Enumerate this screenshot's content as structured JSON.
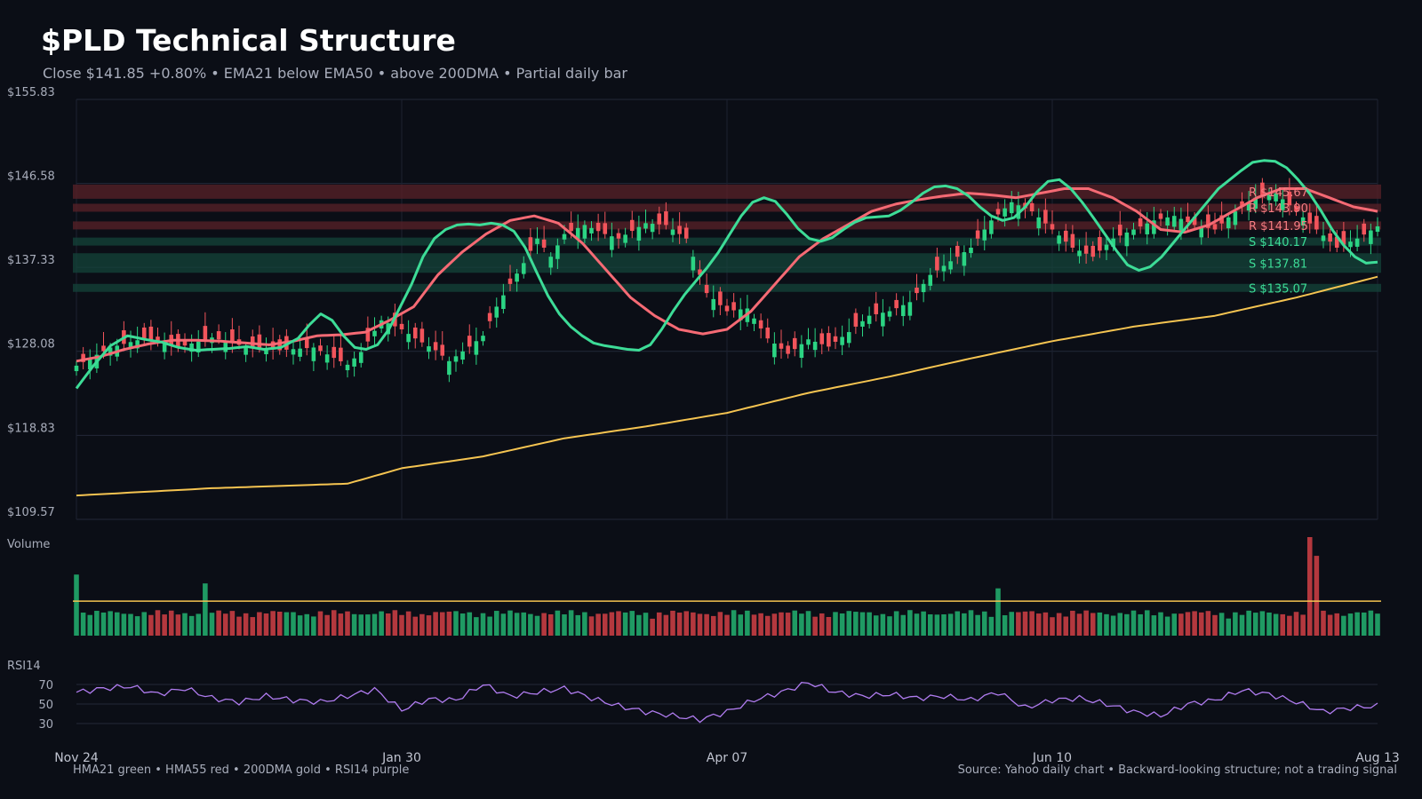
{
  "header": {
    "title": "$PLD Technical Structure",
    "subtitle": "Close $141.85  +0.80%  •  EMA21 below EMA50 • above 200DMA  •  Partial daily bar"
  },
  "footer": {
    "legend": "HMA21 green • HMA55 red • 200DMA gold  •  RSI14 purple",
    "source": "Source: Yahoo daily chart • Backward-looking structure; not a trading signal"
  },
  "colors": {
    "background": "#0b0e16",
    "up": "#2bd483",
    "down": "#f2545b",
    "hma21": "#3ddc97",
    "hma55": "#f56a74",
    "dma200": "#f5c451",
    "rsi": "#b07cf0",
    "resistance_band": "#5a2228",
    "support_band": "#14443a"
  },
  "chart_data": {
    "type": "candlestick",
    "price_panel": {
      "ylim": [
        109.57,
        155.83
      ],
      "y_ticks": [
        "$155.83",
        "$146.58",
        "$137.33",
        "$128.08",
        "$118.83",
        "$109.57"
      ],
      "y_tick_values": [
        155.83,
        146.58,
        137.33,
        128.08,
        118.83,
        109.57
      ],
      "x_ticks": [
        "Nov 24",
        "Jan 30",
        "Apr 07",
        "Jun 10",
        "Aug 13"
      ],
      "x_tick_index": [
        0,
        48,
        96,
        144,
        192
      ],
      "n_bars": 193,
      "close_anchors": [
        [
          0,
          126.5
        ],
        [
          5,
          128.5
        ],
        [
          10,
          129.5
        ],
        [
          15,
          128.5
        ],
        [
          20,
          129.6
        ],
        [
          25,
          128.6
        ],
        [
          30,
          128.2
        ],
        [
          35,
          128.5
        ],
        [
          40,
          126.6
        ],
        [
          42,
          128.0
        ],
        [
          45,
          131.5
        ],
        [
          48,
          130.5
        ],
        [
          50,
          129.5
        ],
        [
          53,
          128.2
        ],
        [
          55,
          127.0
        ],
        [
          58,
          128.6
        ],
        [
          60,
          129.8
        ],
        [
          62,
          133.0
        ],
        [
          64,
          135.5
        ],
        [
          66,
          137.8
        ],
        [
          68,
          140.5
        ],
        [
          70,
          138.5
        ],
        [
          72,
          141.0
        ],
        [
          75,
          142.0
        ],
        [
          78,
          141.0
        ],
        [
          80,
          140.5
        ],
        [
          84,
          142.2
        ],
        [
          87,
          142.0
        ],
        [
          90,
          140.5
        ],
        [
          93,
          134.5
        ],
        [
          96,
          132.5
        ],
        [
          99,
          132.8
        ],
        [
          102,
          129.5
        ],
        [
          105,
          127.8
        ],
        [
          108,
          129.4
        ],
        [
          111,
          128.6
        ],
        [
          114,
          130.2
        ],
        [
          117,
          132.0
        ],
        [
          120,
          132.5
        ],
        [
          123,
          133.5
        ],
        [
          126,
          136.5
        ],
        [
          129,
          138.0
        ],
        [
          132,
          139.5
        ],
        [
          135,
          142.5
        ],
        [
          138,
          144.5
        ],
        [
          141,
          143.5
        ],
        [
          144,
          141.5
        ],
        [
          147,
          139.5
        ],
        [
          150,
          138.5
        ],
        [
          153,
          140.5
        ],
        [
          156,
          141.5
        ],
        [
          159,
          142.5
        ],
        [
          162,
          143.0
        ],
        [
          165,
          142.0
        ],
        [
          168,
          141.5
        ],
        [
          171,
          143.5
        ],
        [
          174,
          145.0
        ],
        [
          177,
          145.5
        ],
        [
          180,
          143.5
        ],
        [
          183,
          141.5
        ],
        [
          186,
          139.5
        ],
        [
          189,
          140.5
        ],
        [
          192,
          141.85
        ]
      ],
      "candles_note": "approximate path through anchors with alternating up/down bars",
      "hma21_anchors": [
        [
          0,
          124.0
        ],
        [
          3,
          126.5
        ],
        [
          6,
          128.7
        ],
        [
          9,
          129.8
        ],
        [
          12,
          129.4
        ],
        [
          15,
          129.1
        ],
        [
          18,
          128.5
        ],
        [
          21,
          128.2
        ],
        [
          24,
          128.3
        ],
        [
          27,
          128.4
        ],
        [
          30,
          128.6
        ],
        [
          33,
          128.3
        ],
        [
          36,
          128.5
        ],
        [
          39,
          129.5
        ],
        [
          41,
          131.0
        ],
        [
          43,
          132.2
        ],
        [
          45,
          131.5
        ],
        [
          47,
          129.8
        ],
        [
          49,
          128.5
        ],
        [
          51,
          128.3
        ],
        [
          53,
          128.8
        ],
        [
          55,
          130.5
        ],
        [
          57,
          133.0
        ],
        [
          59,
          135.5
        ],
        [
          61,
          138.5
        ],
        [
          63,
          140.5
        ],
        [
          65,
          141.5
        ],
        [
          67,
          142.0
        ],
        [
          69,
          142.1
        ],
        [
          71,
          142.0
        ],
        [
          73,
          142.2
        ],
        [
          75,
          142.0
        ],
        [
          77,
          141.3
        ],
        [
          79,
          139.5
        ],
        [
          81,
          136.8
        ],
        [
          83,
          134.2
        ],
        [
          85,
          132.2
        ],
        [
          87,
          130.8
        ],
        [
          89,
          129.8
        ],
        [
          91,
          129.0
        ],
        [
          93,
          128.7
        ],
        [
          95,
          128.5
        ],
        [
          97,
          128.3
        ],
        [
          99,
          128.2
        ],
        [
          101,
          128.8
        ],
        [
          103,
          130.5
        ],
        [
          105,
          132.5
        ],
        [
          107,
          134.3
        ],
        [
          109,
          135.8
        ],
        [
          111,
          137.3
        ],
        [
          113,
          139.0
        ],
        [
          115,
          141.0
        ],
        [
          117,
          143.0
        ],
        [
          119,
          144.5
        ],
        [
          121,
          145.0
        ],
        [
          123,
          144.6
        ],
        [
          125,
          143.2
        ],
        [
          127,
          141.6
        ],
        [
          129,
          140.5
        ],
        [
          131,
          140.2
        ],
        [
          133,
          140.6
        ],
        [
          135,
          141.5
        ],
        [
          137,
          142.3
        ],
        [
          139,
          142.8
        ],
        [
          141,
          142.9
        ],
        [
          143,
          143.0
        ],
        [
          145,
          143.6
        ],
        [
          147,
          144.5
        ],
        [
          149,
          145.5
        ],
        [
          151,
          146.2
        ],
        [
          153,
          146.3
        ],
        [
          155,
          146.0
        ],
        [
          157,
          145.2
        ],
        [
          159,
          144.0
        ],
        [
          161,
          143.0
        ],
        [
          163,
          142.5
        ],
        [
          165,
          142.8
        ],
        [
          167,
          144.0
        ],
        [
          169,
          145.6
        ],
        [
          171,
          146.8
        ],
        [
          173,
          147.0
        ],
        [
          175,
          146.0
        ],
        [
          177,
          144.5
        ],
        [
          179,
          142.8
        ],
        [
          181,
          141.0
        ],
        [
          183,
          139.2
        ],
        [
          185,
          137.6
        ],
        [
          187,
          137.0
        ],
        [
          189,
          137.4
        ],
        [
          191,
          138.5
        ],
        [
          193,
          140.0
        ],
        [
          195,
          141.5
        ],
        [
          197,
          143.0
        ],
        [
          199,
          144.5
        ],
        [
          201,
          146.0
        ],
        [
          203,
          147.0
        ],
        [
          205,
          148.0
        ],
        [
          207,
          148.9
        ],
        [
          209,
          149.1
        ],
        [
          211,
          149.0
        ],
        [
          213,
          148.3
        ],
        [
          215,
          147.0
        ],
        [
          217,
          145.5
        ],
        [
          219,
          143.6
        ],
        [
          221,
          141.5
        ],
        [
          223,
          139.8
        ],
        [
          225,
          138.5
        ],
        [
          227,
          137.8
        ],
        [
          229,
          137.9
        ]
      ],
      "hma55_anchors": [
        [
          0,
          127.0
        ],
        [
          5,
          127.5
        ],
        [
          10,
          128.3
        ],
        [
          15,
          128.9
        ],
        [
          20,
          129.3
        ],
        [
          25,
          129.3
        ],
        [
          30,
          129.2
        ],
        [
          35,
          129.0
        ],
        [
          40,
          128.8
        ],
        [
          45,
          129.2
        ],
        [
          50,
          129.8
        ],
        [
          55,
          129.9
        ],
        [
          60,
          130.2
        ],
        [
          65,
          131.5
        ],
        [
          70,
          133.0
        ],
        [
          75,
          136.5
        ],
        [
          80,
          139.0
        ],
        [
          85,
          141.0
        ],
        [
          90,
          142.5
        ],
        [
          95,
          143.0
        ],
        [
          100,
          142.2
        ],
        [
          105,
          140.0
        ],
        [
          110,
          137.0
        ],
        [
          115,
          134.0
        ],
        [
          120,
          132.0
        ],
        [
          125,
          130.5
        ],
        [
          130,
          130.0
        ],
        [
          135,
          130.5
        ],
        [
          140,
          132.5
        ],
        [
          145,
          135.5
        ],
        [
          150,
          138.5
        ],
        [
          155,
          140.5
        ],
        [
          160,
          142.0
        ],
        [
          165,
          143.5
        ],
        [
          170,
          144.3
        ],
        [
          175,
          144.8
        ],
        [
          180,
          145.2
        ],
        [
          185,
          145.5
        ],
        [
          190,
          145.3
        ],
        [
          195,
          145.0
        ],
        [
          200,
          145.5
        ],
        [
          205,
          146.0
        ],
        [
          210,
          146.0
        ],
        [
          215,
          145.0
        ],
        [
          220,
          143.5
        ],
        [
          225,
          141.5
        ],
        [
          230,
          141.2
        ],
        [
          235,
          142.0
        ],
        [
          240,
          143.5
        ],
        [
          245,
          145.0
        ],
        [
          250,
          146.0
        ],
        [
          255,
          146.0
        ],
        [
          260,
          145.0
        ],
        [
          265,
          144.0
        ],
        [
          270,
          143.5
        ]
      ],
      "dma200": [
        [
          0,
          112.2
        ],
        [
          20,
          113.0
        ],
        [
          40,
          113.5
        ],
        [
          48,
          115.2
        ],
        [
          60,
          116.5
        ],
        [
          72,
          118.5
        ],
        [
          84,
          119.8
        ],
        [
          96,
          121.3
        ],
        [
          108,
          123.5
        ],
        [
          120,
          125.3
        ],
        [
          132,
          127.3
        ],
        [
          144,
          129.2
        ],
        [
          156,
          130.8
        ],
        [
          168,
          132.0
        ],
        [
          180,
          134.0
        ],
        [
          192,
          136.3
        ]
      ],
      "levels": [
        {
          "kind": "resistance",
          "label": "R $145.67",
          "value": 145.67
        },
        {
          "kind": "resistance",
          "label": "R $143.90",
          "value": 143.9
        },
        {
          "kind": "resistance",
          "label": "R $141.95",
          "value": 141.95
        },
        {
          "kind": "support",
          "label": "S $140.17",
          "value": 140.17
        },
        {
          "kind": "support",
          "label": "S $137.81",
          "value": 137.81
        },
        {
          "kind": "support",
          "label": "S $135.07",
          "value": 135.07
        }
      ]
    },
    "volume_panel": {
      "label": "Volume",
      "average_line": 0.35,
      "spikes": [
        {
          "index": 0,
          "value": 0.62
        },
        {
          "index": 19,
          "value": 0.53
        },
        {
          "index": 136,
          "value": 0.48
        },
        {
          "index": 182,
          "value": 1.0
        },
        {
          "index": 183,
          "value": 0.81
        }
      ]
    },
    "rsi_panel": {
      "label": "RSI14",
      "ylim": [
        20,
        80
      ],
      "y_ticks": [
        "70",
        "50",
        "30"
      ],
      "y_tick_values": [
        70,
        50,
        30
      ],
      "anchors": [
        [
          0,
          62
        ],
        [
          4,
          66
        ],
        [
          8,
          68
        ],
        [
          12,
          60
        ],
        [
          16,
          66
        ],
        [
          20,
          56
        ],
        [
          24,
          52
        ],
        [
          28,
          58
        ],
        [
          32,
          54
        ],
        [
          36,
          52
        ],
        [
          40,
          58
        ],
        [
          44,
          65
        ],
        [
          48,
          44
        ],
        [
          52,
          55
        ],
        [
          56,
          54
        ],
        [
          60,
          70
        ],
        [
          64,
          58
        ],
        [
          68,
          62
        ],
        [
          72,
          66
        ],
        [
          76,
          56
        ],
        [
          80,
          48
        ],
        [
          84,
          42
        ],
        [
          88,
          38
        ],
        [
          92,
          34
        ],
        [
          96,
          42
        ],
        [
          100,
          54
        ],
        [
          104,
          62
        ],
        [
          108,
          72
        ],
        [
          112,
          62
        ],
        [
          116,
          58
        ],
        [
          120,
          60
        ],
        [
          124,
          56
        ],
        [
          128,
          58
        ],
        [
          132,
          54
        ],
        [
          136,
          62
        ],
        [
          140,
          46
        ],
        [
          144,
          54
        ],
        [
          148,
          56
        ],
        [
          152,
          50
        ],
        [
          156,
          42
        ],
        [
          160,
          38
        ],
        [
          164,
          50
        ],
        [
          168,
          54
        ],
        [
          172,
          64
        ],
        [
          176,
          60
        ],
        [
          180,
          52
        ],
        [
          184,
          42
        ],
        [
          188,
          46
        ],
        [
          192,
          48
        ]
      ]
    }
  }
}
